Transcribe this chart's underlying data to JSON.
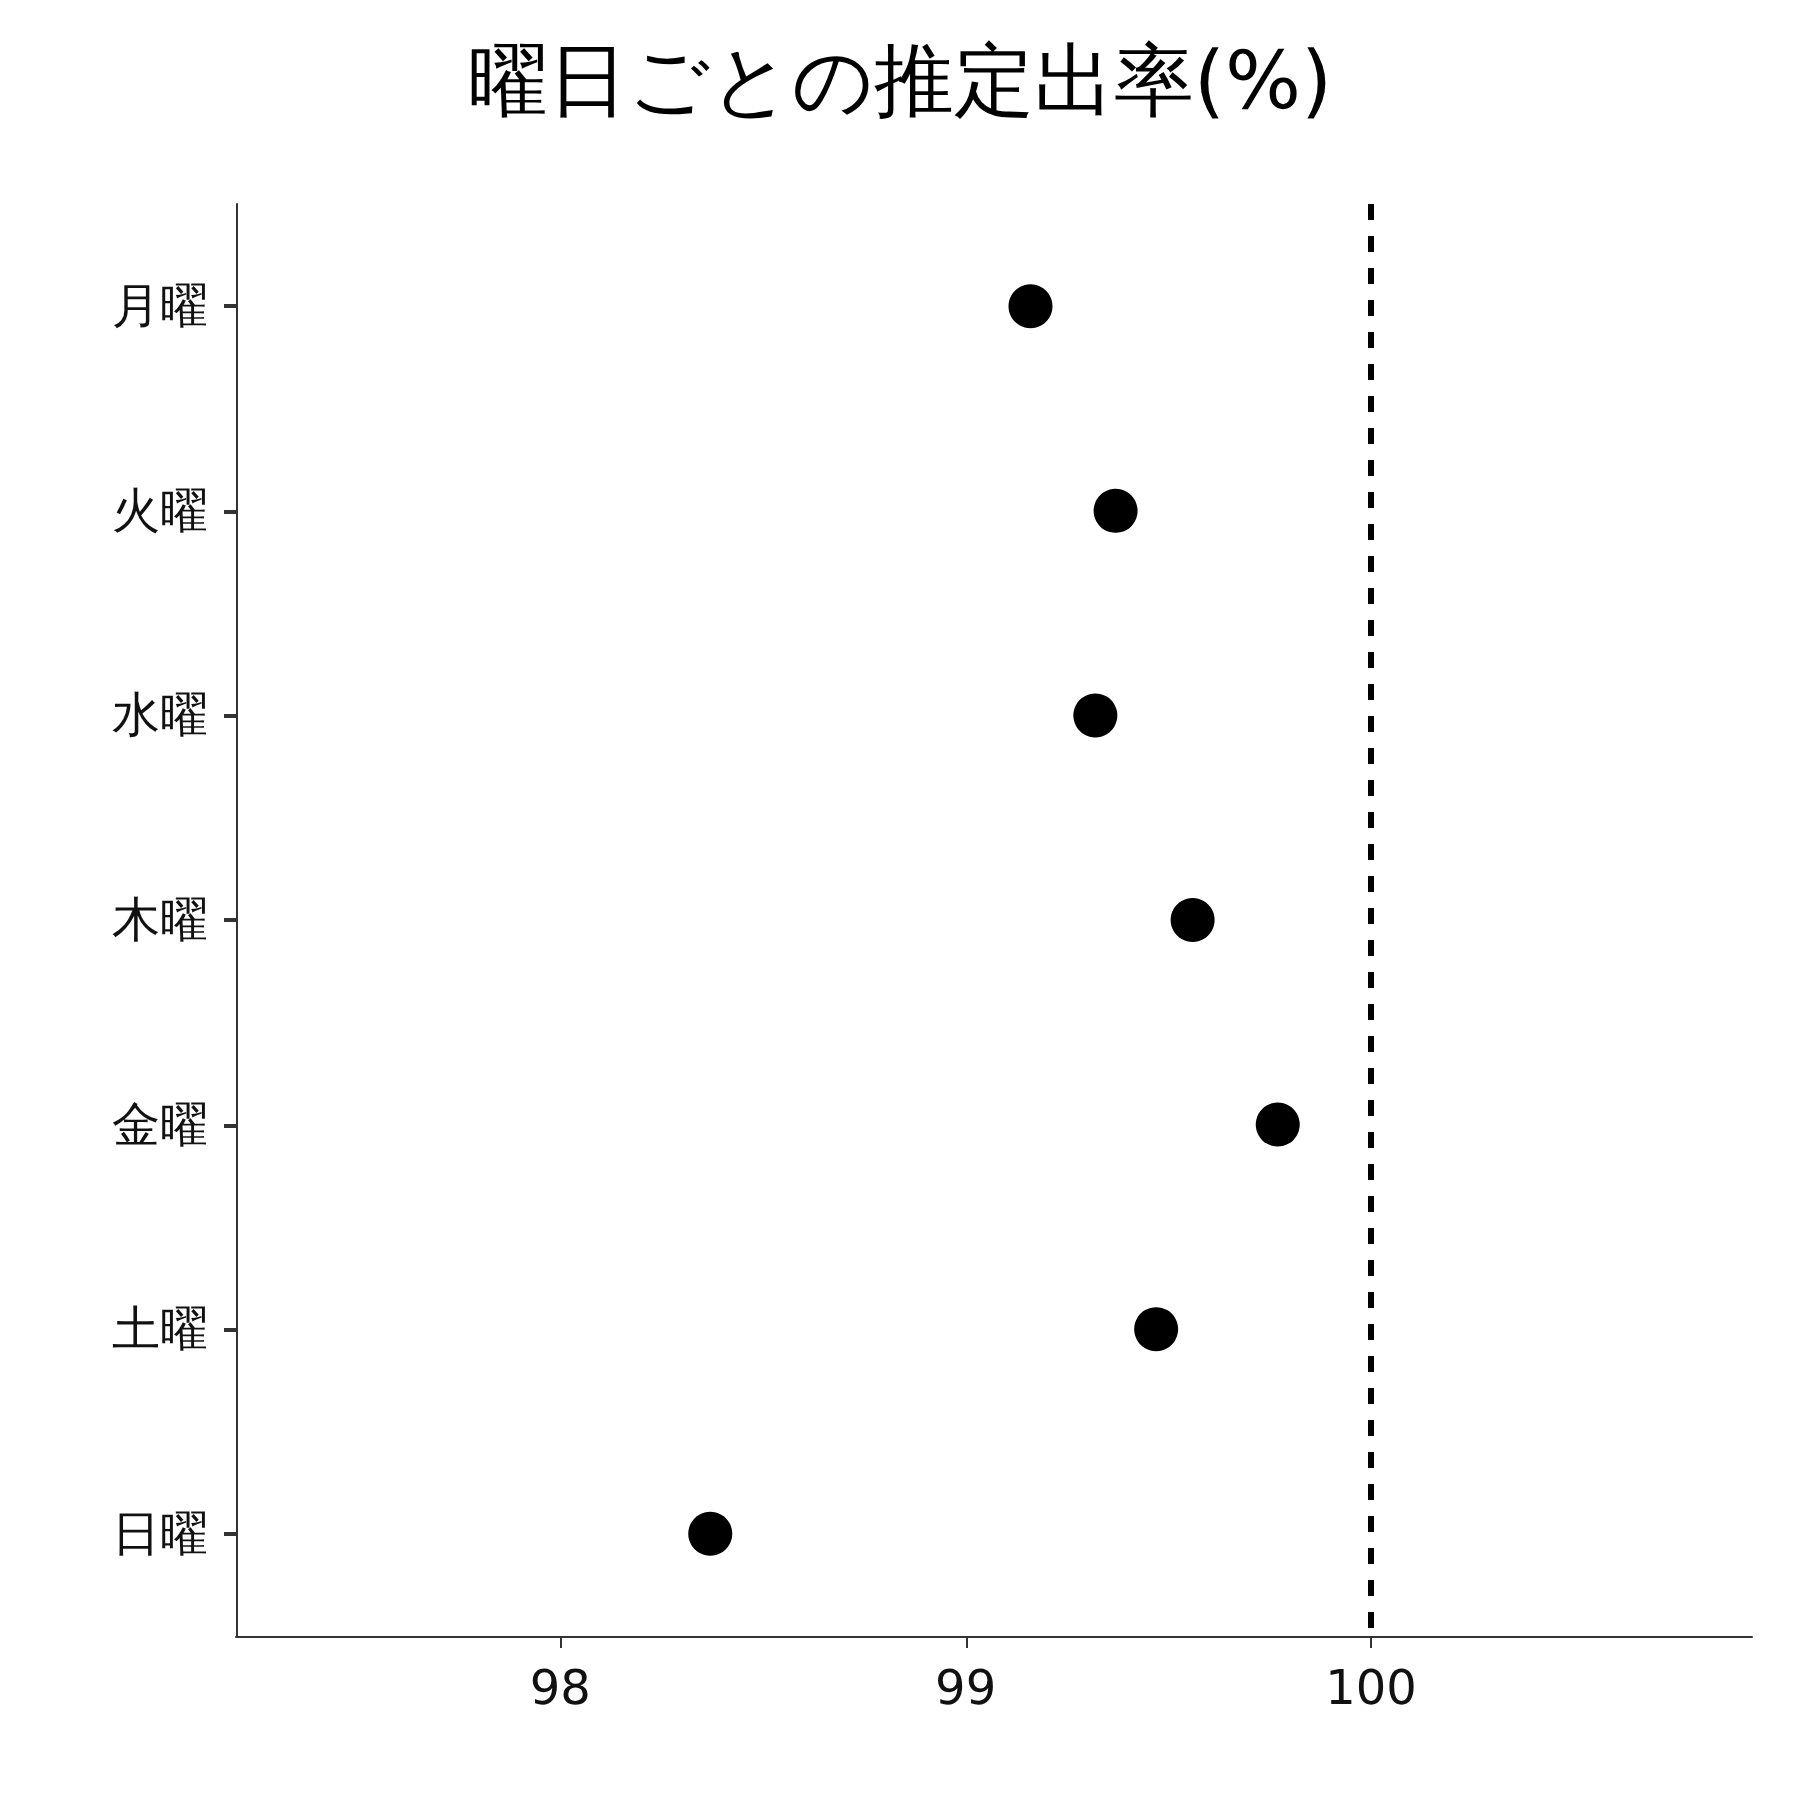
{
  "chart_data": {
    "type": "scatter",
    "orientation": "horizontal",
    "title": "曜日ごとの推定出率(%)",
    "categories": [
      "月曜",
      "火曜",
      "水曜",
      "木曜",
      "金曜",
      "土曜",
      "日曜"
    ],
    "values": [
      99.16,
      99.37,
      99.32,
      99.56,
      99.77,
      99.47,
      98.37
    ],
    "color": "#000000",
    "marker": "circle",
    "grid": false,
    "xlim": [
      97.2,
      100.94
    ],
    "xticks": [
      98,
      99,
      100
    ],
    "ref_lines": [
      {
        "axis": "x",
        "value": 100,
        "label": null,
        "color": "#000000",
        "line_style": "dashed"
      }
    ]
  }
}
